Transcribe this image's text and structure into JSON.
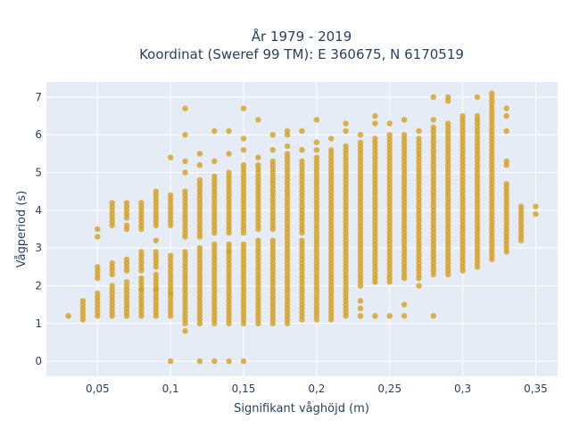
{
  "chart_data": {
    "type": "scatter",
    "title": "År 1979 - 2019",
    "subtitle": "Koordinat (Sweref 99 TM): E 360675, N 6170519",
    "xlabel": "Signifikant våghöjd (m)",
    "ylabel": "Vågperiod (s)",
    "xlim": [
      0.015,
      0.365
    ],
    "ylim": [
      -0.4,
      7.4
    ],
    "x_ticks": [
      0.05,
      0.1,
      0.15,
      0.2,
      0.25,
      0.3,
      0.35
    ],
    "x_tick_labels": [
      "0,05",
      "0,1",
      "0,15",
      "0,2",
      "0,25",
      "0,3",
      "0,35"
    ],
    "y_ticks": [
      0,
      1,
      2,
      3,
      4,
      5,
      6,
      7
    ],
    "y_tick_labels": [
      "0",
      "1",
      "2",
      "3",
      "4",
      "5",
      "6",
      "7"
    ],
    "grid": true,
    "marker_color": "#d4a020",
    "plot_bgcolor": "#e5ecf6",
    "series": [
      {
        "ranges": [
          {
            "x": 0.03,
            "bands": [
              [
                1.2,
                1.2
              ]
            ],
            "extra": []
          },
          {
            "x": 0.04,
            "bands": [
              [
                1.1,
                1.6
              ]
            ],
            "extra": []
          },
          {
            "x": 0.05,
            "bands": [
              [
                1.2,
                1.8
              ],
              [
                2.2,
                2.5
              ]
            ],
            "extra": [
              3.3,
              3.5
            ]
          },
          {
            "x": 0.06,
            "bands": [
              [
                1.2,
                1.9
              ],
              [
                2.3,
                2.6
              ],
              [
                3.6,
                4.2
              ]
            ],
            "extra": [
              2.0
            ]
          },
          {
            "x": 0.07,
            "bands": [
              [
                1.2,
                2.1
              ],
              [
                2.4,
                2.7
              ],
              [
                3.8,
                4.2
              ]
            ],
            "extra": [
              3.5,
              3.6
            ]
          },
          {
            "x": 0.08,
            "bands": [
              [
                1.2,
                2.2
              ],
              [
                2.4,
                2.9
              ],
              [
                3.5,
                4.2
              ]
            ],
            "extra": [
              1.9
            ]
          },
          {
            "x": 0.09,
            "bands": [
              [
                1.2,
                2.3
              ],
              [
                2.5,
                2.9
              ],
              [
                3.6,
                4.5
              ]
            ],
            "extra": [
              1.9,
              3.2
            ]
          },
          {
            "x": 0.1,
            "bands": [
              [
                1.2,
                2.4
              ],
              [
                2.5,
                2.8
              ],
              [
                3.6,
                4.4
              ]
            ],
            "extra": [
              1.8,
              5.4,
              0
            ]
          },
          {
            "x": 0.11,
            "bands": [
              [
                1.1,
                2.9
              ],
              [
                3.3,
                4.5
              ]
            ],
            "extra": [
              1.0,
              5.0,
              5.3,
              6.0,
              6.7,
              0.8
            ]
          },
          {
            "x": 0.12,
            "bands": [
              [
                1.1,
                3.0
              ],
              [
                3.3,
                4.8
              ]
            ],
            "extra": [
              1.0,
              5.2,
              5.5,
              0
            ]
          },
          {
            "x": 0.13,
            "bands": [
              [
                1.1,
                3.1
              ],
              [
                3.4,
                4.9
              ]
            ],
            "extra": [
              1.0,
              5.3,
              6.1,
              0
            ]
          },
          {
            "x": 0.14,
            "bands": [
              [
                1.1,
                3.1
              ],
              [
                3.4,
                5.0
              ]
            ],
            "extra": [
              1.0,
              5.5,
              6.1,
              0,
              2.9
            ]
          },
          {
            "x": 0.15,
            "bands": [
              [
                1.1,
                3.1
              ],
              [
                3.4,
                5.2
              ]
            ],
            "extra": [
              1.0,
              5.6,
              5.9,
              6.7,
              0
            ]
          },
          {
            "x": 0.16,
            "bands": [
              [
                1.1,
                3.2
              ],
              [
                3.5,
                5.2
              ]
            ],
            "extra": [
              1.0,
              5.4,
              6.4
            ]
          },
          {
            "x": 0.17,
            "bands": [
              [
                1.1,
                3.2
              ],
              [
                3.5,
                5.3
              ]
            ],
            "extra": [
              1.0,
              5.6,
              6.0
            ]
          },
          {
            "x": 0.18,
            "bands": [
              [
                1.1,
                3.4
              ],
              [
                3.5,
                5.5
              ]
            ],
            "extra": [
              1.0,
              5.7,
              6.0,
              6.1
            ]
          },
          {
            "x": 0.19,
            "bands": [
              [
                1.1,
                3.2
              ],
              [
                3.4,
                5.3
              ]
            ],
            "extra": [
              5.6,
              6.1
            ]
          },
          {
            "x": 0.2,
            "bands": [
              [
                1.1,
                5.4
              ]
            ],
            "extra": [
              5.6,
              5.8,
              6.4
            ]
          },
          {
            "x": 0.21,
            "bands": [
              [
                1.1,
                5.6
              ]
            ],
            "extra": [
              5.9
            ]
          },
          {
            "x": 0.22,
            "bands": [
              [
                1.3,
                5.7
              ]
            ],
            "extra": [
              1.2,
              6.1,
              6.3
            ]
          },
          {
            "x": 0.23,
            "bands": [
              [
                2.0,
                5.8
              ]
            ],
            "extra": [
              1.2,
              1.4,
              1.6,
              6.0
            ]
          },
          {
            "x": 0.24,
            "bands": [
              [
                2.1,
                5.9
              ]
            ],
            "extra": [
              1.2,
              6.3,
              6.5
            ]
          },
          {
            "x": 0.25,
            "bands": [
              [
                2.1,
                6.0
              ]
            ],
            "extra": [
              1.2,
              6.3
            ]
          },
          {
            "x": 0.26,
            "bands": [
              [
                2.2,
                6.0
              ]
            ],
            "extra": [
              1.2,
              1.5,
              6.4
            ]
          },
          {
            "x": 0.27,
            "bands": [
              [
                2.2,
                5.9
              ]
            ],
            "extra": [
              2.0,
              6.1
            ]
          },
          {
            "x": 0.28,
            "bands": [
              [
                2.3,
                6.2
              ]
            ],
            "extra": [
              1.2,
              6.4,
              7.0
            ]
          },
          {
            "x": 0.29,
            "bands": [
              [
                2.3,
                6.3
              ]
            ],
            "extra": [
              6.9,
              7.0
            ]
          },
          {
            "x": 0.3,
            "bands": [
              [
                2.4,
                6.4
              ]
            ],
            "extra": [
              6.5
            ]
          },
          {
            "x": 0.31,
            "bands": [
              [
                2.5,
                6.5
              ]
            ],
            "extra": [
              7.0
            ]
          },
          {
            "x": 0.32,
            "bands": [
              [
                2.7,
                7.0
              ]
            ],
            "extra": [
              7.1
            ]
          },
          {
            "x": 0.33,
            "bands": [
              [
                2.9,
                4.7
              ]
            ],
            "extra": [
              5.2,
              5.3,
              6.1,
              6.5,
              6.7
            ]
          },
          {
            "x": 0.34,
            "bands": [
              [
                3.2,
                4.1
              ]
            ],
            "extra": []
          },
          {
            "x": 0.35,
            "bands": [
              [
                3.9,
                3.9
              ]
            ],
            "extra": [
              4.1
            ]
          }
        ]
      }
    ]
  }
}
